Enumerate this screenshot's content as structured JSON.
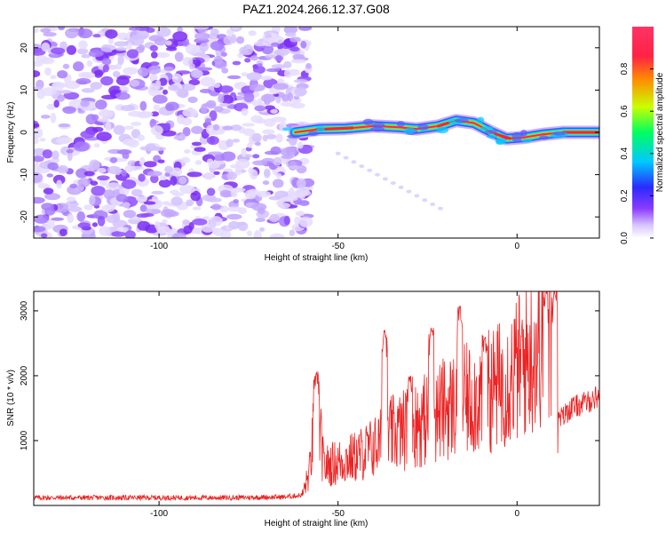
{
  "figure_title": "PAZ1.2024.266.12.37.G08",
  "colorbar": {
    "label": "Normalized spectral amplitude",
    "ticks": [
      "0.0",
      "0.2",
      "0.4",
      "0.6",
      "0.8"
    ],
    "tick_values": [
      0.0,
      0.2,
      0.4,
      0.6,
      0.8
    ],
    "range": [
      0,
      1
    ],
    "colors": [
      "#ffffff",
      "#d9c6ff",
      "#8a3cff",
      "#2a2aff",
      "#00c8ff",
      "#00ff60",
      "#c8ff00",
      "#ff8c00",
      "#ff1b6b",
      "#ff3366"
    ]
  },
  "chart_data": [
    {
      "type": "heatmap",
      "title": "",
      "xlabel": "Height of straight line (km)",
      "ylabel": "Frequency (Hz)",
      "xlim": [
        -135,
        23
      ],
      "ylim": [
        -25,
        25
      ],
      "xticks": [
        -100,
        -50,
        0
      ],
      "xtick_labels": [
        "-100",
        "-50",
        "0"
      ],
      "yticks": [
        -20,
        -10,
        0,
        10,
        20
      ],
      "ytick_labels": [
        "-20",
        "-10",
        "0",
        "10",
        "20"
      ],
      "noise_region_end_x": -60,
      "ridge": [
        {
          "x": -62,
          "f": 0.0
        },
        {
          "x": -55,
          "f": 0.8
        },
        {
          "x": -48,
          "f": 0.9
        },
        {
          "x": -40,
          "f": 1.5
        },
        {
          "x": -33,
          "f": 1.2
        },
        {
          "x": -28,
          "f": 0.8
        },
        {
          "x": -22,
          "f": 1.5
        },
        {
          "x": -17,
          "f": 2.8
        },
        {
          "x": -12,
          "f": 2.2
        },
        {
          "x": -7,
          "f": 0.0
        },
        {
          "x": -3,
          "f": -1.5
        },
        {
          "x": 2,
          "f": -1.2
        },
        {
          "x": 7,
          "f": -0.5
        },
        {
          "x": 13,
          "f": 0.0
        },
        {
          "x": 23,
          "f": 0.0
        }
      ]
    },
    {
      "type": "line",
      "title": "",
      "xlabel": "Height of straight line (km)",
      "ylabel": "SNR (10 * v/v)",
      "xlim": [
        -135,
        23
      ],
      "ylim": [
        0,
        3300
      ],
      "xticks": [
        -100,
        -50,
        0
      ],
      "xtick_labels": [
        "-100",
        "-50",
        "0"
      ],
      "yticks": [
        1000,
        2000,
        3000
      ],
      "ytick_labels": [
        "1000",
        "2000",
        "3000"
      ],
      "color": "#ee2222",
      "envelope": [
        {
          "x": -135,
          "y": 120
        },
        {
          "x": -80,
          "y": 120
        },
        {
          "x": -65,
          "y": 130
        },
        {
          "x": -60,
          "y": 160
        },
        {
          "x": -58,
          "y": 500
        },
        {
          "x": -56,
          "y": 1600
        },
        {
          "x": -54,
          "y": 600
        },
        {
          "x": -45,
          "y": 750
        },
        {
          "x": -40,
          "y": 900
        },
        {
          "x": -35,
          "y": 1100
        },
        {
          "x": -30,
          "y": 1200
        },
        {
          "x": -25,
          "y": 1350
        },
        {
          "x": -20,
          "y": 1500
        },
        {
          "x": -15,
          "y": 1600
        },
        {
          "x": -10,
          "y": 1700
        },
        {
          "x": -5,
          "y": 1850
        },
        {
          "x": 0,
          "y": 2100
        },
        {
          "x": 5,
          "y": 2400
        },
        {
          "x": 9,
          "y": 2750
        },
        {
          "x": 11,
          "y": 2900
        },
        {
          "x": 11.5,
          "y": 1300
        },
        {
          "x": 15,
          "y": 1500
        },
        {
          "x": 20,
          "y": 1600
        },
        {
          "x": 23,
          "y": 1700
        }
      ],
      "peaks": [
        {
          "x": -56,
          "y": 2050
        },
        {
          "x": -37,
          "y": 2700
        },
        {
          "x": -30,
          "y": 2000
        },
        {
          "x": -24,
          "y": 2750
        },
        {
          "x": -16,
          "y": 3100
        },
        {
          "x": -9,
          "y": 2600
        },
        {
          "x": 8,
          "y": 3300
        },
        {
          "x": 10.5,
          "y": 3280
        }
      ]
    }
  ]
}
